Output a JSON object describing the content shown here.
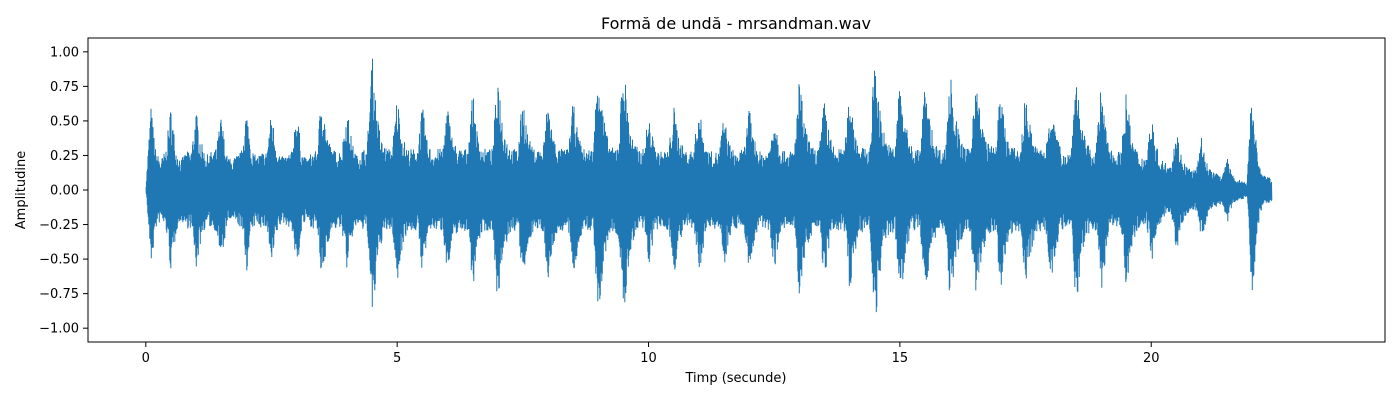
{
  "chart_data": {
    "type": "line",
    "title": "Formă de undă - mrsandman.wav",
    "xlabel": "Timp (secunde)",
    "ylabel": "Amplitudine",
    "xlim": [
      -1.15,
      24.65
    ],
    "ylim": [
      -1.1,
      1.1
    ],
    "x_ticks": [
      0,
      5,
      10,
      15,
      20
    ],
    "x_tick_labels": [
      "0",
      "5",
      "10",
      "15",
      "20"
    ],
    "y_ticks": [
      1.0,
      0.75,
      0.5,
      0.25,
      0.0,
      -0.25,
      -0.5,
      -0.75,
      -1.0
    ],
    "y_tick_labels": [
      "1.00",
      "0.75",
      "0.50",
      "0.25",
      "0.00",
      "−0.25",
      "−0.50",
      "−0.75",
      "−1.00"
    ],
    "grid": false,
    "series": [
      {
        "color": "#1f77b4",
        "duration": 23.4,
        "x": [
          0.0,
          0.1,
          0.2,
          0.3,
          0.4,
          0.5,
          0.6,
          0.7,
          0.8,
          0.9,
          1.0,
          1.1,
          1.2,
          1.3,
          1.4,
          1.5,
          1.6,
          1.7,
          1.8,
          1.9,
          2.0,
          2.1,
          2.2,
          2.3,
          2.4,
          2.5,
          2.6,
          2.7,
          2.8,
          2.9,
          3.0,
          3.1,
          3.2,
          3.3,
          3.4,
          3.5,
          3.6,
          3.7,
          3.8,
          3.9,
          4.0,
          4.1,
          4.2,
          4.3,
          4.4,
          4.5,
          4.6,
          4.7,
          4.8,
          4.9,
          5.0,
          5.1,
          5.2,
          5.3,
          5.4,
          5.5,
          5.6,
          5.7,
          5.8,
          5.9,
          6.0,
          6.1,
          6.2,
          6.3,
          6.4,
          6.5,
          6.6,
          6.7,
          6.8,
          6.9,
          7.0,
          7.1,
          7.2,
          7.3,
          7.4,
          7.5,
          7.6,
          7.7,
          7.8,
          7.9,
          8.0,
          8.1,
          8.2,
          8.3,
          8.4,
          8.5,
          8.6,
          8.7,
          8.8,
          8.9,
          9.0,
          9.1,
          9.2,
          9.3,
          9.4,
          9.5,
          9.6,
          9.7,
          9.8,
          9.9,
          10.0,
          10.1,
          10.2,
          10.3,
          10.4,
          10.5,
          10.6,
          10.7,
          10.8,
          10.9,
          11.0,
          11.1,
          11.2,
          11.3,
          11.4,
          11.5,
          11.6,
          11.7,
          11.8,
          11.9,
          12.0,
          12.1,
          12.2,
          12.3,
          12.4,
          12.5,
          12.6,
          12.7,
          12.8,
          12.9,
          13.0,
          13.1,
          13.2,
          13.3,
          13.4,
          13.5,
          13.6,
          13.7,
          13.8,
          13.9,
          14.0,
          14.1,
          14.2,
          14.3,
          14.4,
          14.5,
          14.6,
          14.7,
          14.8,
          14.9,
          15.0,
          15.1,
          15.2,
          15.3,
          15.4,
          15.5,
          15.6,
          15.7,
          15.8,
          15.9,
          16.0,
          16.1,
          16.2,
          16.3,
          16.4,
          16.5,
          16.6,
          16.7,
          16.8,
          16.9,
          17.0,
          17.1,
          17.2,
          17.3,
          17.4,
          17.5,
          17.6,
          17.7,
          17.8,
          17.9,
          18.0,
          18.1,
          18.2,
          18.3,
          18.4,
          18.5,
          18.6,
          18.7,
          18.8,
          18.9,
          19.0,
          19.1,
          19.2,
          19.3,
          19.4,
          19.5,
          19.6,
          19.7,
          19.8,
          19.9,
          20.0,
          20.1,
          20.2,
          20.3,
          20.4,
          20.5,
          20.6,
          20.7,
          20.8,
          20.9,
          21.0,
          21.1,
          21.2,
          21.3,
          21.4,
          21.5,
          21.6,
          21.7,
          21.8,
          21.9,
          22.0,
          22.1,
          22.2,
          22.3,
          22.4,
          22.5,
          22.6,
          22.7,
          22.8,
          22.9,
          23.0,
          23.1,
          23.2,
          23.3,
          23.4
        ],
        "y_max": [
          0.01,
          0.62,
          0.28,
          0.22,
          0.3,
          0.62,
          0.3,
          0.22,
          0.28,
          0.28,
          0.58,
          0.35,
          0.25,
          0.28,
          0.3,
          0.55,
          0.26,
          0.22,
          0.25,
          0.28,
          0.6,
          0.3,
          0.24,
          0.28,
          0.28,
          0.58,
          0.32,
          0.24,
          0.26,
          0.28,
          0.6,
          0.28,
          0.22,
          0.28,
          0.28,
          0.72,
          0.4,
          0.3,
          0.28,
          0.3,
          0.6,
          0.35,
          0.25,
          0.3,
          0.3,
          1.0,
          0.55,
          0.35,
          0.3,
          0.3,
          0.7,
          0.4,
          0.3,
          0.3,
          0.3,
          0.62,
          0.35,
          0.28,
          0.3,
          0.3,
          0.62,
          0.38,
          0.3,
          0.3,
          0.3,
          0.72,
          0.4,
          0.3,
          0.3,
          0.3,
          0.88,
          0.5,
          0.35,
          0.3,
          0.3,
          0.7,
          0.4,
          0.3,
          0.3,
          0.3,
          0.68,
          0.4,
          0.3,
          0.3,
          0.3,
          0.65,
          0.4,
          0.3,
          0.3,
          0.3,
          1.0,
          0.55,
          0.35,
          0.3,
          0.35,
          0.95,
          0.55,
          0.35,
          0.3,
          0.3,
          0.55,
          0.35,
          0.28,
          0.28,
          0.3,
          0.62,
          0.4,
          0.3,
          0.28,
          0.3,
          0.62,
          0.38,
          0.28,
          0.28,
          0.28,
          0.55,
          0.35,
          0.28,
          0.28,
          0.3,
          0.6,
          0.38,
          0.28,
          0.28,
          0.3,
          0.58,
          0.35,
          0.28,
          0.28,
          0.3,
          0.82,
          0.5,
          0.35,
          0.3,
          0.32,
          0.68,
          0.4,
          0.3,
          0.3,
          0.3,
          0.75,
          0.45,
          0.32,
          0.3,
          0.3,
          1.0,
          0.6,
          0.4,
          0.32,
          0.32,
          0.82,
          0.5,
          0.35,
          0.3,
          0.3,
          0.78,
          0.5,
          0.35,
          0.3,
          0.3,
          0.88,
          0.55,
          0.38,
          0.3,
          0.3,
          0.85,
          0.55,
          0.38,
          0.32,
          0.32,
          0.72,
          0.45,
          0.32,
          0.3,
          0.3,
          0.72,
          0.45,
          0.32,
          0.3,
          0.3,
          0.68,
          0.42,
          0.3,
          0.28,
          0.28,
          0.88,
          0.5,
          0.35,
          0.3,
          0.3,
          0.75,
          0.45,
          0.3,
          0.28,
          0.28,
          0.72,
          0.42,
          0.3,
          0.25,
          0.25,
          0.55,
          0.32,
          0.22,
          0.2,
          0.2,
          0.45,
          0.25,
          0.18,
          0.15,
          0.15,
          0.38,
          0.2,
          0.14,
          0.12,
          0.1,
          0.25,
          0.12,
          0.08,
          0.07,
          0.05,
          0.76,
          0.3,
          0.12,
          0.1,
          0.08
        ],
        "y_min": [
          -0.01,
          -0.55,
          -0.28,
          -0.22,
          -0.3,
          -0.62,
          -0.3,
          -0.22,
          -0.28,
          -0.28,
          -0.58,
          -0.35,
          -0.25,
          -0.28,
          -0.3,
          -0.55,
          -0.26,
          -0.22,
          -0.25,
          -0.28,
          -0.6,
          -0.3,
          -0.24,
          -0.28,
          -0.28,
          -0.58,
          -0.32,
          -0.24,
          -0.26,
          -0.28,
          -0.6,
          -0.28,
          -0.22,
          -0.28,
          -0.28,
          -0.72,
          -0.4,
          -0.3,
          -0.28,
          -0.3,
          -0.6,
          -0.35,
          -0.25,
          -0.3,
          -0.3,
          -1.0,
          -0.55,
          -0.35,
          -0.3,
          -0.3,
          -0.7,
          -0.4,
          -0.3,
          -0.3,
          -0.3,
          -0.62,
          -0.35,
          -0.28,
          -0.3,
          -0.3,
          -0.62,
          -0.38,
          -0.3,
          -0.3,
          -0.3,
          -0.72,
          -0.4,
          -0.3,
          -0.3,
          -0.3,
          -0.88,
          -0.5,
          -0.35,
          -0.3,
          -0.3,
          -0.7,
          -0.4,
          -0.3,
          -0.3,
          -0.3,
          -0.68,
          -0.4,
          -0.3,
          -0.3,
          -0.3,
          -0.65,
          -0.4,
          -0.3,
          -0.3,
          -0.3,
          -1.0,
          -0.55,
          -0.35,
          -0.3,
          -0.35,
          -0.95,
          -0.55,
          -0.35,
          -0.3,
          -0.3,
          -0.55,
          -0.35,
          -0.28,
          -0.28,
          -0.3,
          -0.62,
          -0.4,
          -0.3,
          -0.28,
          -0.3,
          -0.62,
          -0.38,
          -0.28,
          -0.28,
          -0.28,
          -0.55,
          -0.35,
          -0.28,
          -0.28,
          -0.3,
          -0.6,
          -0.38,
          -0.28,
          -0.28,
          -0.3,
          -0.58,
          -0.35,
          -0.28,
          -0.28,
          -0.3,
          -0.82,
          -0.5,
          -0.35,
          -0.3,
          -0.32,
          -0.68,
          -0.4,
          -0.3,
          -0.3,
          -0.3,
          -0.75,
          -0.45,
          -0.32,
          -0.3,
          -0.3,
          -1.0,
          -0.6,
          -0.4,
          -0.32,
          -0.32,
          -0.82,
          -0.5,
          -0.35,
          -0.3,
          -0.3,
          -0.78,
          -0.5,
          -0.35,
          -0.3,
          -0.3,
          -0.88,
          -0.55,
          -0.38,
          -0.3,
          -0.3,
          -0.85,
          -0.55,
          -0.38,
          -0.32,
          -0.32,
          -0.72,
          -0.45,
          -0.32,
          -0.3,
          -0.3,
          -0.72,
          -0.45,
          -0.32,
          -0.3,
          -0.3,
          -0.68,
          -0.42,
          -0.3,
          -0.28,
          -0.28,
          -0.88,
          -0.5,
          -0.35,
          -0.3,
          -0.3,
          -0.75,
          -0.45,
          -0.3,
          -0.28,
          -0.28,
          -0.72,
          -0.42,
          -0.3,
          -0.25,
          -0.25,
          -0.55,
          -0.32,
          -0.22,
          -0.2,
          -0.2,
          -0.45,
          -0.25,
          -0.18,
          -0.15,
          -0.15,
          -0.38,
          -0.2,
          -0.14,
          -0.12,
          -0.1,
          -0.25,
          -0.12,
          -0.08,
          -0.07,
          -0.05,
          -0.78,
          -0.3,
          -0.12,
          -0.1,
          -0.08
        ]
      }
    ]
  }
}
